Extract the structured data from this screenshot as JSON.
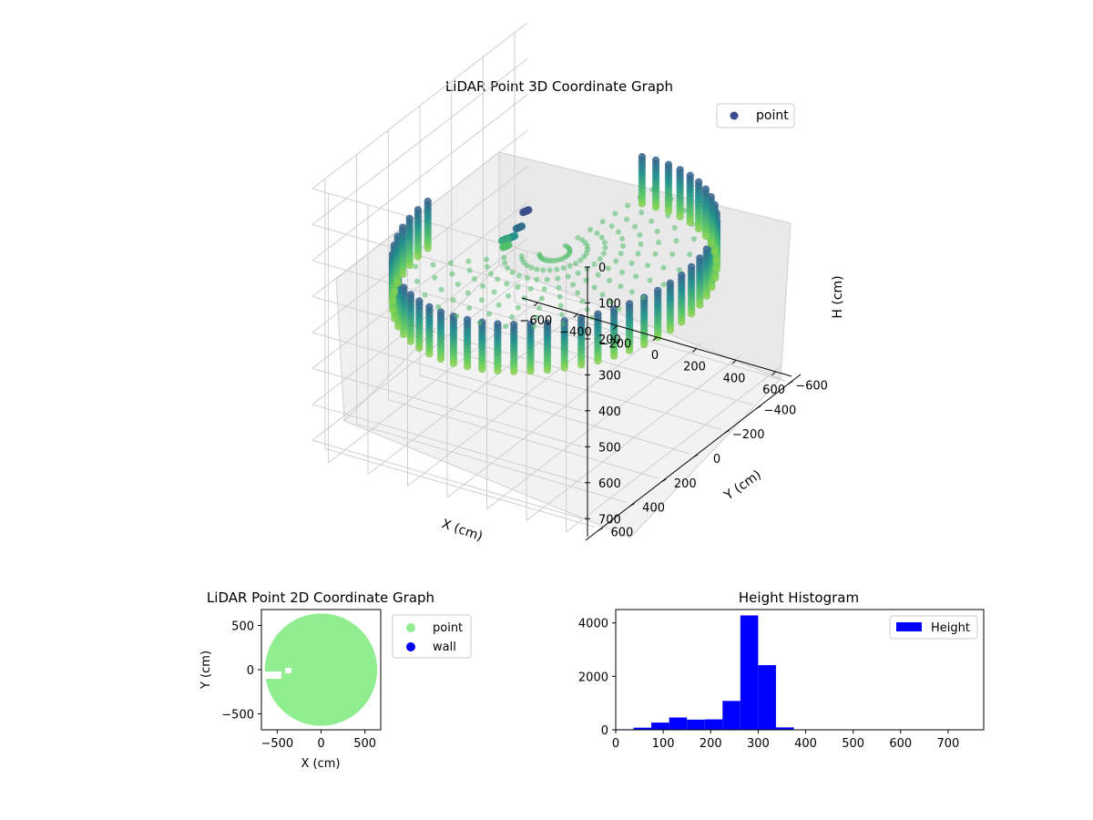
{
  "chart_data": [
    {
      "type": "scatter3d",
      "title": "LiDAR Point 3D Coordinate Graph",
      "xlabel": "X (cm)",
      "ylabel": "Y (cm)",
      "zlabel": "H (cm)",
      "xticks": [
        -600,
        -400,
        -200,
        0,
        200,
        400,
        600
      ],
      "yticks": [
        -600,
        -400,
        -200,
        0,
        200,
        400,
        600
      ],
      "zticks": [
        0,
        100,
        200,
        300,
        400,
        500,
        600,
        700
      ],
      "xlim": [
        -680,
        680
      ],
      "ylim": [
        -680,
        680
      ],
      "zlim": [
        0,
        750
      ],
      "z_inverted": true,
      "colormap": "viridis",
      "legend": {
        "location": "upper-right",
        "entries": [
          {
            "label": "point",
            "color": "#3b4a8a"
          }
        ]
      },
      "grid": true,
      "structure": {
        "wall_radius_cm": 640,
        "wall_height_range_cm": [
          260,
          330
        ],
        "wall_gap_angles_deg": [
          180,
          260
        ],
        "floor_height_cm": 300,
        "inner_ramp": [
          [
            -300,
            -50,
            350
          ],
          [
            -250,
            20,
            300
          ],
          [
            -150,
            100,
            250
          ],
          [
            -50,
            180,
            180
          ],
          [
            0,
            200,
            120
          ]
        ]
      }
    },
    {
      "type": "scatter",
      "title": "LiDAR Point 2D Coordinate Graph",
      "xlabel": "X (cm)",
      "ylabel": "Y (cm)",
      "xticks": [
        -500,
        0,
        500
      ],
      "yticks": [
        500,
        0,
        -500
      ],
      "xlim": [
        -680,
        680
      ],
      "ylim": [
        -680,
        680
      ],
      "legend": {
        "location": "outside-right",
        "entries": [
          {
            "label": "point",
            "color": "#90ee90"
          },
          {
            "label": "wall",
            "color": "#0000ff"
          }
        ]
      },
      "series": [
        {
          "name": "point",
          "color": "#90ee90",
          "shape": "disk",
          "center": [
            0,
            0
          ],
          "radius": 640
        },
        {
          "name": "wall",
          "color": "#0000ff",
          "values": []
        }
      ]
    },
    {
      "type": "bar",
      "title": "Height Histogram",
      "xlabel": "",
      "ylabel": "",
      "xticks": [
        0,
        100,
        200,
        300,
        400,
        500,
        600,
        700
      ],
      "yticks": [
        0,
        2000,
        4000
      ],
      "xlim": [
        0,
        775
      ],
      "ylim": [
        0,
        4500
      ],
      "color": "#0000ff",
      "legend": {
        "location": "upper-right",
        "entries": [
          {
            "label": "Height",
            "color": "#0000ff"
          }
        ]
      },
      "bin_edges": [
        0,
        37.5,
        75,
        112.5,
        150,
        187.5,
        225,
        262.5,
        300,
        337.5,
        375,
        412.5,
        450,
        487.5,
        525,
        562.5,
        600,
        637.5,
        675,
        712.5,
        750
      ],
      "series": [
        {
          "name": "Height",
          "values": [
            20,
            80,
            270,
            460,
            380,
            390,
            1080,
            4280,
            2420,
            90,
            0,
            0,
            0,
            0,
            0,
            0,
            0,
            0,
            0,
            0
          ]
        }
      ]
    }
  ]
}
